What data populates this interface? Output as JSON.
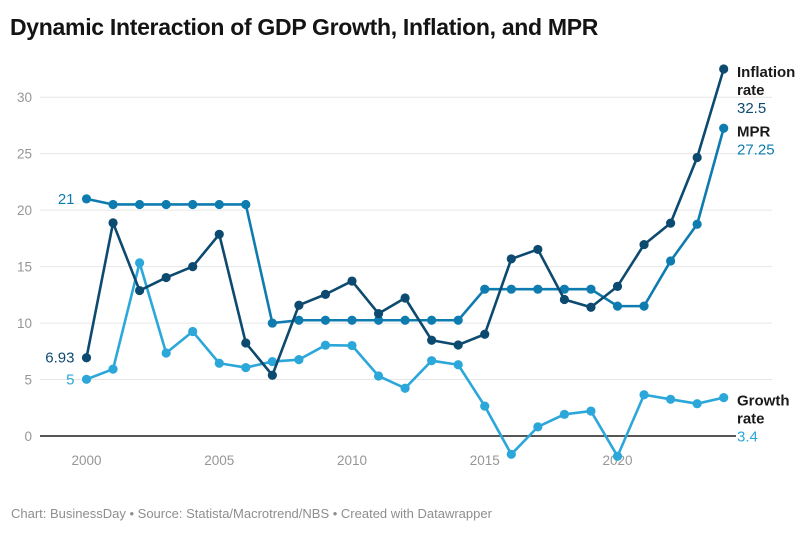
{
  "header": {
    "title": "Dynamic Interaction of GDP Growth, Inflation, and MPR"
  },
  "footer": {
    "text": "Chart: BusinessDay • Source: Statista/Macrotrend/NBS • Created with Datawrapper"
  },
  "chart_data": {
    "type": "line",
    "title": "Dynamic Interaction of GDP Growth, Inflation, and MPR",
    "x": [
      2000,
      2001,
      2002,
      2003,
      2004,
      2005,
      2006,
      2007,
      2008,
      2009,
      2010,
      2011,
      2012,
      2013,
      2014,
      2015,
      2016,
      2017,
      2018,
      2019,
      2020,
      2021,
      2022,
      2023,
      2024
    ],
    "xticks": [
      2000,
      2005,
      2010,
      2015,
      2020
    ],
    "yticks": [
      0,
      5,
      10,
      15,
      20,
      25,
      30
    ],
    "ylim": [
      -2.5,
      33.5
    ],
    "grid": "horizontal",
    "legend_position": "right-end-labels",
    "series": [
      {
        "name": "Growth rate",
        "label_lines": [
          "Growth",
          "rate"
        ],
        "color": "#2ca7d9",
        "start_label": "5",
        "end_label": "3.4",
        "values": [
          5.02,
          5.92,
          15.33,
          7.35,
          9.25,
          6.44,
          6.06,
          6.59,
          6.76,
          8.04,
          8.01,
          5.31,
          4.23,
          6.67,
          6.31,
          2.65,
          -1.62,
          0.81,
          1.92,
          2.21,
          -1.79,
          3.65,
          3.25,
          2.86,
          3.4
        ]
      },
      {
        "name": "MPR",
        "label_lines": [
          "MPR"
        ],
        "color": "#0f7cb0",
        "start_label": "21",
        "end_label": "27.25",
        "values": [
          21,
          20.5,
          20.5,
          20.5,
          20.5,
          20.5,
          20.5,
          10,
          10.25,
          10.25,
          10.25,
          10.25,
          10.25,
          10.25,
          10.25,
          13,
          13,
          13,
          13,
          13,
          11.5,
          11.5,
          15.5,
          18.75,
          27.25
        ]
      },
      {
        "name": "Inflation rate",
        "label_lines": [
          "Inflation",
          "rate"
        ],
        "color": "#0d4a70",
        "start_label": "6.93",
        "end_label": "32.5",
        "values": [
          6.93,
          18.87,
          12.88,
          14.03,
          15.0,
          17.86,
          8.24,
          5.38,
          11.58,
          12.54,
          13.72,
          10.84,
          12.22,
          8.48,
          8.06,
          9.01,
          15.68,
          16.52,
          12.09,
          11.4,
          13.25,
          16.95,
          18.85,
          24.66,
          32.5
        ]
      }
    ],
    "colors": {
      "grid": "#e6e6e6",
      "zero_line": "#1f1f1f",
      "tick_text": "#969696"
    }
  }
}
